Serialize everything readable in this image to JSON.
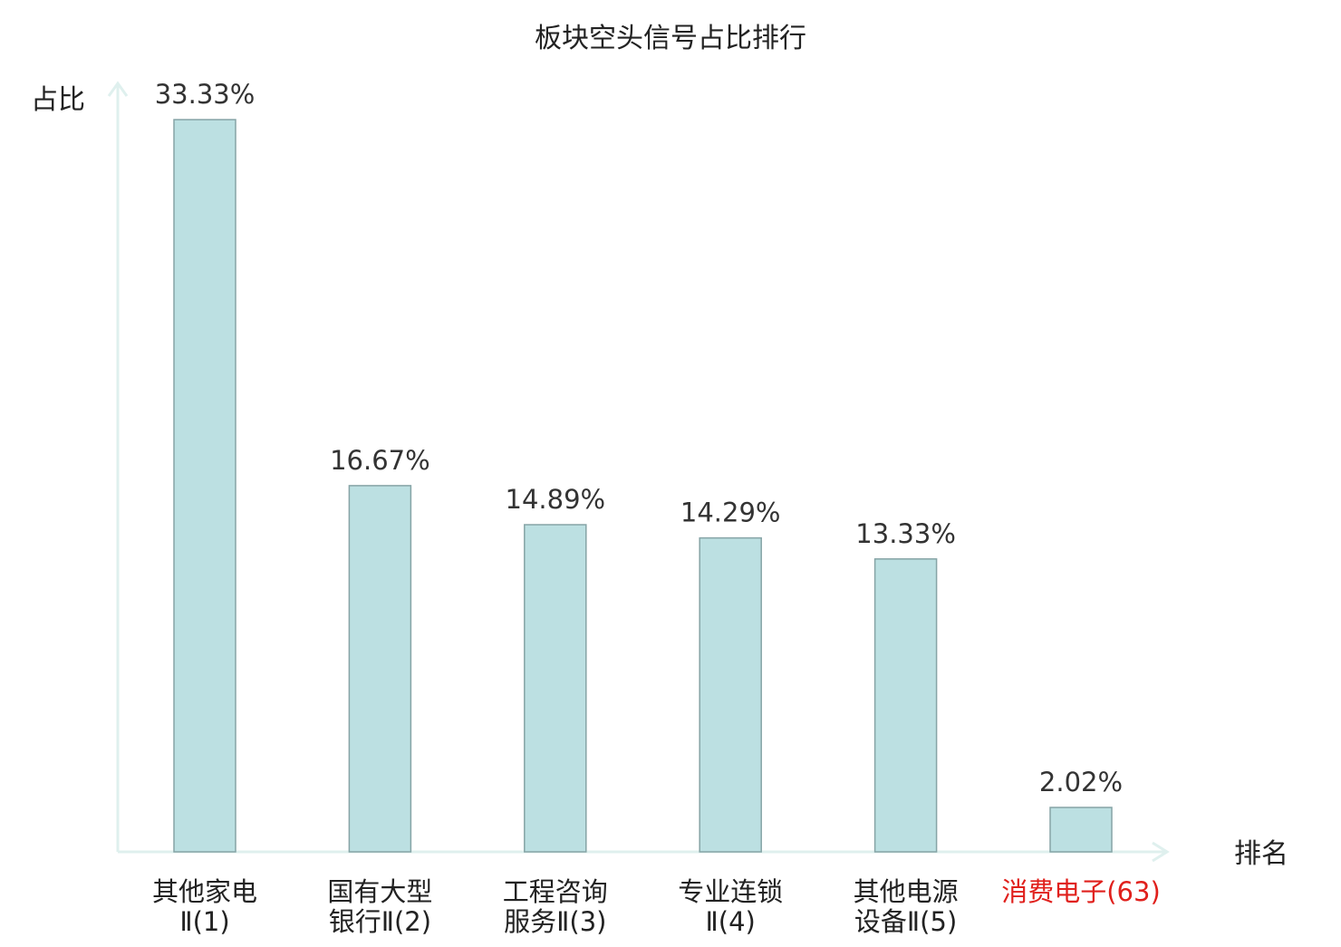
{
  "chart_data": {
    "type": "bar",
    "title": "板块空头信号占比排行",
    "ylabel": "占比",
    "xlabel": "排名",
    "ylim": [
      0,
      34
    ],
    "categories": [
      [
        "其他家电",
        "Ⅱ(1)"
      ],
      [
        "国有大型",
        "银行Ⅱ(2)"
      ],
      [
        "工程咨询",
        "服务Ⅱ(3)"
      ],
      [
        "专业连锁",
        "Ⅱ(4)"
      ],
      [
        "其他电源",
        "设备Ⅱ(5)"
      ],
      [
        "消费电子(63)"
      ]
    ],
    "values": [
      33.33,
      16.67,
      14.89,
      14.29,
      13.33,
      2.02
    ],
    "value_labels": [
      "33.33%",
      "16.67%",
      "14.89%",
      "14.29%",
      "13.33%",
      "2.02%"
    ],
    "highlight_index": 5,
    "colors": {
      "bar_fill": "#bce0e2",
      "bar_stroke": "#86a4a6",
      "axis": "#dff0ee",
      "text": "#333333",
      "highlight_text": "#e0201c"
    }
  }
}
